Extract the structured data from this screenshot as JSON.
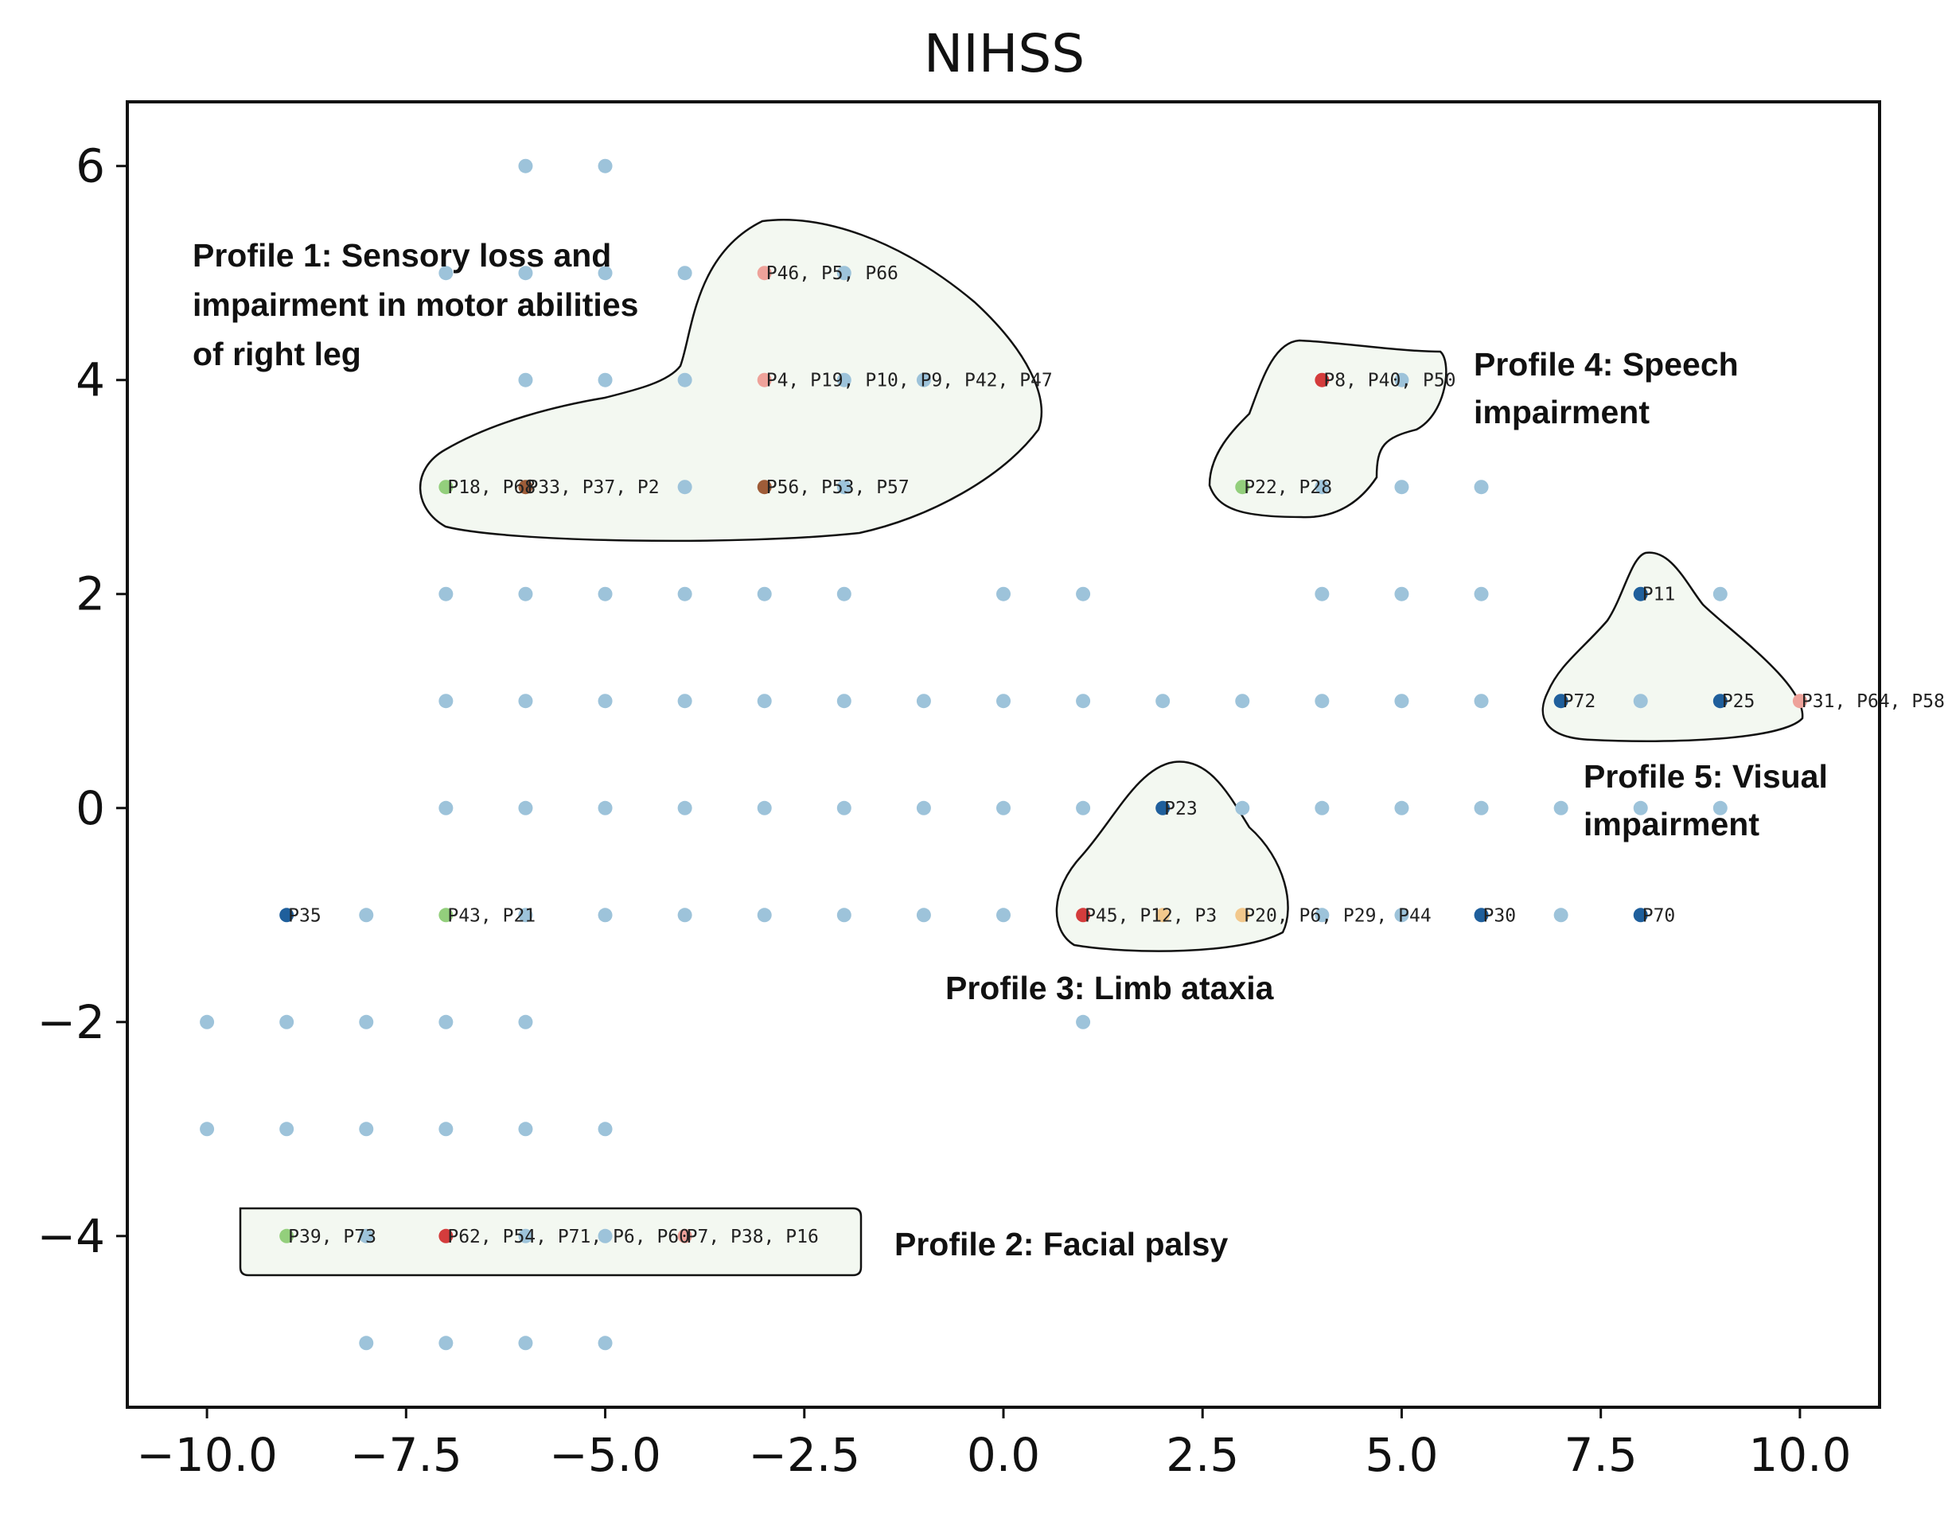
{
  "chart_data": {
    "type": "scatter",
    "title": "NIHSS",
    "xlabel": "",
    "ylabel": "",
    "xlim": [
      -11,
      11
    ],
    "ylim": [
      -5.6,
      6.6
    ],
    "xticks": [
      -10.0,
      -7.5,
      -5.0,
      -2.5,
      0.0,
      2.5,
      5.0,
      7.5,
      10.0
    ],
    "xtick_labels": [
      "−10.0",
      "−7.5",
      "−5.0",
      "−2.5",
      "0.0",
      "2.5",
      "5.0",
      "7.5",
      "10.0"
    ],
    "yticks": [
      -4,
      -2,
      0,
      2,
      4,
      6
    ],
    "ytick_labels": [
      "−4",
      "−2",
      "0",
      "2",
      "4",
      "6"
    ],
    "grid": false,
    "colors": {
      "default": "#9dc3da",
      "blue": "#1f5f9c",
      "red": "#d43c3c",
      "salmon": "#eea29a",
      "green": "#93cf7c",
      "brown": "#9e5c38",
      "orange": "#f2c88c"
    },
    "background_points": [
      [
        -6,
        6
      ],
      [
        -5,
        6
      ],
      [
        -7,
        5
      ],
      [
        -6,
        5
      ],
      [
        -5,
        5
      ],
      [
        -4,
        5
      ],
      [
        -2,
        5
      ],
      [
        -6,
        4
      ],
      [
        -5,
        4
      ],
      [
        -4,
        4
      ],
      [
        -2,
        4
      ],
      [
        -1,
        4
      ],
      [
        5,
        4
      ],
      [
        -4,
        3
      ],
      [
        -2,
        3
      ],
      [
        4,
        3
      ],
      [
        5,
        3
      ],
      [
        6,
        3
      ],
      [
        -7,
        2
      ],
      [
        -6,
        2
      ],
      [
        -5,
        2
      ],
      [
        -4,
        2
      ],
      [
        -3,
        2
      ],
      [
        -2,
        2
      ],
      [
        0,
        2
      ],
      [
        1,
        2
      ],
      [
        4,
        2
      ],
      [
        5,
        2
      ],
      [
        6,
        2
      ],
      [
        9,
        2
      ],
      [
        -7,
        1
      ],
      [
        -6,
        1
      ],
      [
        -5,
        1
      ],
      [
        -4,
        1
      ],
      [
        -3,
        1
      ],
      [
        -2,
        1
      ],
      [
        -1,
        1
      ],
      [
        0,
        1
      ],
      [
        1,
        1
      ],
      [
        2,
        1
      ],
      [
        3,
        1
      ],
      [
        4,
        1
      ],
      [
        5,
        1
      ],
      [
        6,
        1
      ],
      [
        8,
        1
      ],
      [
        -7,
        0
      ],
      [
        -6,
        0
      ],
      [
        -5,
        0
      ],
      [
        -4,
        0
      ],
      [
        -3,
        0
      ],
      [
        -2,
        0
      ],
      [
        -1,
        0
      ],
      [
        0,
        0
      ],
      [
        1,
        0
      ],
      [
        3,
        0
      ],
      [
        4,
        0
      ],
      [
        5,
        0
      ],
      [
        6,
        0
      ],
      [
        7,
        0
      ],
      [
        8,
        0
      ],
      [
        9,
        0
      ],
      [
        -8,
        -1
      ],
      [
        -6,
        -1
      ],
      [
        -5,
        -1
      ],
      [
        -4,
        -1
      ],
      [
        -3,
        -1
      ],
      [
        -2,
        -1
      ],
      [
        -1,
        -1
      ],
      [
        0,
        -1
      ],
      [
        4,
        -1
      ],
      [
        5,
        -1
      ],
      [
        7,
        -1
      ],
      [
        -10,
        -2
      ],
      [
        -9,
        -2
      ],
      [
        -8,
        -2
      ],
      [
        -7,
        -2
      ],
      [
        -6,
        -2
      ],
      [
        1,
        -2
      ],
      [
        -10,
        -3
      ],
      [
        -9,
        -3
      ],
      [
        -8,
        -3
      ],
      [
        -7,
        -3
      ],
      [
        -6,
        -3
      ],
      [
        -5,
        -3
      ],
      [
        -8,
        -4
      ],
      [
        -6,
        -4
      ],
      [
        -5,
        -4
      ],
      [
        -8,
        -5
      ],
      [
        -7,
        -5
      ],
      [
        -6,
        -5
      ],
      [
        -5,
        -5
      ]
    ],
    "labeled_points": [
      {
        "x": -3,
        "y": 5,
        "color": "salmon",
        "label": "P46, P5, P66"
      },
      {
        "x": -3,
        "y": 4,
        "color": "salmon",
        "label": "P4, P19, P10, P9, P42, P47"
      },
      {
        "x": -7,
        "y": 3,
        "color": "green",
        "label": "P18, P68"
      },
      {
        "x": -6,
        "y": 3,
        "color": "brown",
        "label": "P33, P37, P2"
      },
      {
        "x": -3,
        "y": 3,
        "color": "brown",
        "label": "P56, P53, P57"
      },
      {
        "x": 4,
        "y": 4,
        "color": "red",
        "label": "P8, P40, P50"
      },
      {
        "x": 3,
        "y": 3,
        "color": "green",
        "label": "P22, P28"
      },
      {
        "x": 8,
        "y": 2,
        "color": "blue",
        "label": "P11"
      },
      {
        "x": 7,
        "y": 1,
        "color": "blue",
        "label": "P72"
      },
      {
        "x": 9,
        "y": 1,
        "color": "blue",
        "label": "P25"
      },
      {
        "x": 10,
        "y": 1,
        "color": "salmon",
        "label": "P31, P64, P58"
      },
      {
        "x": 2,
        "y": 0,
        "color": "blue",
        "label": "P23"
      },
      {
        "x": -9,
        "y": -1,
        "color": "blue",
        "label": "P35"
      },
      {
        "x": -7,
        "y": -1,
        "color": "green",
        "label": "P43, P21"
      },
      {
        "x": 1,
        "y": -1,
        "color": "red",
        "label": "P45, P12, P3"
      },
      {
        "x": 2,
        "y": -1,
        "color": "orange",
        "label": ""
      },
      {
        "x": 3,
        "y": -1,
        "color": "orange",
        "label": "P20, P6, P29, P44"
      },
      {
        "x": 6,
        "y": -1,
        "color": "blue",
        "label": "P30"
      },
      {
        "x": 8,
        "y": -1,
        "color": "blue",
        "label": "P70"
      },
      {
        "x": -9,
        "y": -4,
        "color": "green",
        "label": "P39, P73"
      },
      {
        "x": -7,
        "y": -4,
        "color": "red",
        "label": "P62, P54, P71, P6, P60"
      },
      {
        "x": -4,
        "y": -4,
        "color": "salmon",
        "label": "P7, P38, P16"
      }
    ],
    "annotations": [
      {
        "id": "profile-1",
        "lines": [
          "Profile 1: Sensory loss and",
          "impairment in motor abilities",
          "of right leg"
        ]
      },
      {
        "id": "profile-2",
        "lines": [
          "Profile 2: Facial palsy"
        ]
      },
      {
        "id": "profile-3",
        "lines": [
          "Profile 3: Limb ataxia"
        ]
      },
      {
        "id": "profile-4",
        "lines": [
          "Profile 4: Speech",
          "impairment"
        ]
      },
      {
        "id": "profile-5",
        "lines": [
          "Profile 5: Visual",
          "impairment"
        ]
      }
    ]
  }
}
